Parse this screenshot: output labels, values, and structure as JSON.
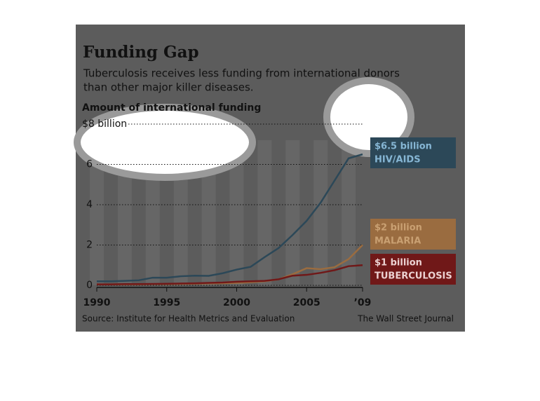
{
  "chart_data": {
    "type": "line",
    "title": "Funding Gap",
    "subtitle": [
      "Tuberculosis receives less funding from international donors",
      "than other major killer diseases."
    ],
    "y_label": "Amount of international funding",
    "source": "Source: Institute for Health Metrics and Evaluation",
    "credit": "The Wall Street Journal",
    "x": [
      1990,
      1991,
      1992,
      1993,
      1994,
      1995,
      1996,
      1997,
      1998,
      1999,
      2000,
      2001,
      2002,
      2003,
      2004,
      2005,
      2006,
      2007,
      2008,
      2009
    ],
    "xlim": [
      1990,
      2009
    ],
    "xticks": [
      1990,
      1995,
      2000,
      2005,
      {
        "value": 2009,
        "label": "’09"
      }
    ],
    "ylim": [
      0,
      8
    ],
    "yticks": [
      0,
      2,
      4,
      6,
      {
        "value": 8,
        "label": "$8 billion"
      }
    ],
    "grid": true,
    "series": [
      {
        "name": "HIV/AIDS",
        "color": "#2c4858",
        "values": [
          0.2,
          0.2,
          0.22,
          0.25,
          0.38,
          0.38,
          0.45,
          0.48,
          0.47,
          0.6,
          0.78,
          0.92,
          1.4,
          1.85,
          2.5,
          3.2,
          4.1,
          5.2,
          6.3,
          6.5
        ],
        "value_labels": [
          null,
          null,
          null,
          null,
          null,
          null,
          null,
          null,
          null,
          null,
          null,
          null,
          null,
          null,
          null,
          null,
          null,
          null,
          null,
          "$6.5 billion"
        ]
      },
      {
        "name": "MALARIA",
        "color": "#9a6c40",
        "values": [
          0.05,
          0.05,
          0.05,
          0.05,
          0.06,
          0.06,
          0.07,
          0.08,
          0.09,
          0.1,
          0.12,
          0.15,
          0.2,
          0.3,
          0.55,
          0.85,
          0.8,
          0.9,
          1.3,
          2
        ],
        "value_labels": [
          null,
          null,
          null,
          null,
          null,
          null,
          null,
          null,
          null,
          null,
          null,
          null,
          null,
          null,
          null,
          null,
          null,
          null,
          null,
          "$2 billion"
        ]
      },
      {
        "name": "TUBERCULOSIS",
        "color": "#701818",
        "values": [
          0.05,
          0.05,
          0.06,
          0.06,
          0.07,
          0.08,
          0.09,
          0.1,
          0.12,
          0.14,
          0.18,
          0.2,
          0.22,
          0.3,
          0.48,
          0.52,
          0.62,
          0.75,
          0.95,
          1
        ],
        "value_labels": [
          null,
          null,
          null,
          null,
          null,
          null,
          null,
          null,
          null,
          null,
          null,
          null,
          null,
          null,
          null,
          null,
          null,
          null,
          null,
          "$1 billion"
        ]
      }
    ]
  }
}
